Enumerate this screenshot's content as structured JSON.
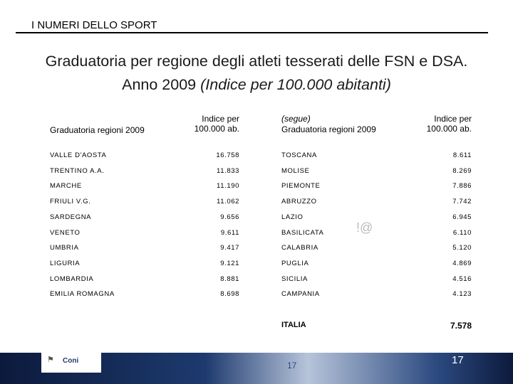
{
  "header": {
    "title": "I NUMERI DELLO SPORT"
  },
  "title": {
    "main": "Graduatoria per regione degli atleti tesserati delle FSN e DSA. Anno 2009",
    "italic": "(Indice per 100.000 abitanti)"
  },
  "table": {
    "left_header": {
      "region": "Graduatoria regioni 2009",
      "index": "Indice per 100.000 ab."
    },
    "right_header": {
      "note": "(segue)",
      "region": "Graduatoria regioni 2009",
      "index": "Indice per 100.000 ab."
    },
    "left_rows": [
      [
        "VALLE D'AOSTA",
        "16.758"
      ],
      [
        "TRENTINO A.A.",
        "11.833"
      ],
      [
        "MARCHE",
        "11.190"
      ],
      [
        "FRIULI V.G.",
        "11.062"
      ],
      [
        "SARDEGNA",
        "9.656"
      ],
      [
        "VENETO",
        "9.611"
      ],
      [
        "UMBRIA",
        "9.417"
      ],
      [
        "LIGURIA",
        "9.121"
      ],
      [
        "LOMBARDIA",
        "8.881"
      ],
      [
        "EMILIA ROMAGNA",
        "8.698"
      ]
    ],
    "right_rows": [
      [
        "TOSCANA",
        "8.611"
      ],
      [
        "MOLISE",
        "8.269"
      ],
      [
        "PIEMONTE",
        "7.886"
      ],
      [
        "ABRUZZO",
        "7.742"
      ],
      [
        "LAZIO",
        "6.945"
      ],
      [
        "BASILICATA",
        "6.110"
      ],
      [
        "CALABRIA",
        "5.120"
      ],
      [
        "PUGLIA",
        "4.869"
      ],
      [
        "SICILIA",
        "4.516"
      ],
      [
        "CAMPANIA",
        "4.123"
      ]
    ],
    "total": [
      "ITALIA",
      "7.578"
    ]
  },
  "artifact": "!@",
  "footer": {
    "logo": "Coni",
    "page_faint": "17",
    "page": "17"
  }
}
